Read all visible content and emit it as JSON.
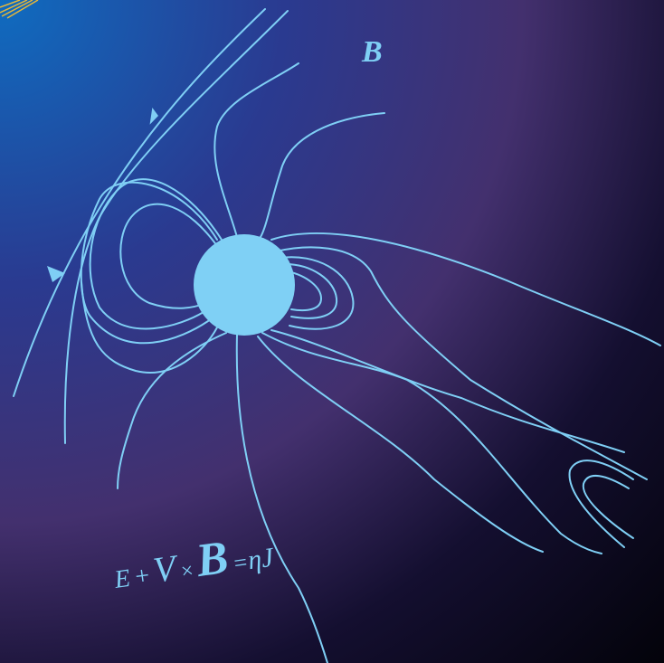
{
  "field_label": "B",
  "equation": [
    "E",
    "+",
    "V",
    "×",
    "B",
    "=",
    "η",
    "J"
  ]
}
